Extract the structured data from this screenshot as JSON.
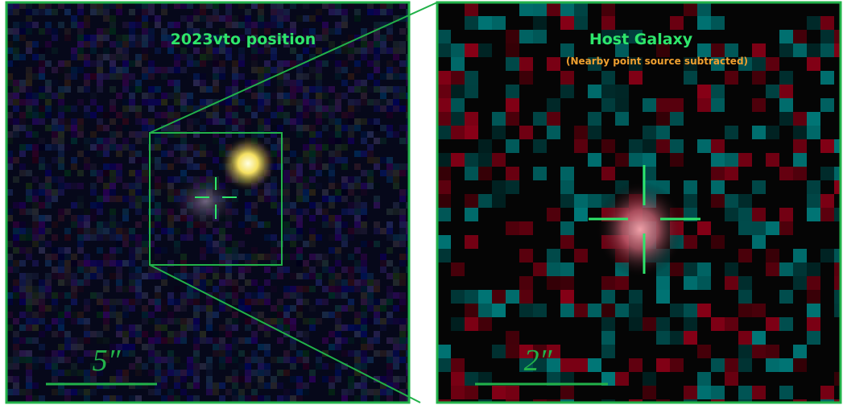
{
  "left": {
    "title": "2023vto position",
    "scale_label": "5″"
  },
  "right": {
    "title": "Host Galaxy",
    "subtitle": "(Nearby point source subtracted)",
    "scale_label": "2″"
  }
}
